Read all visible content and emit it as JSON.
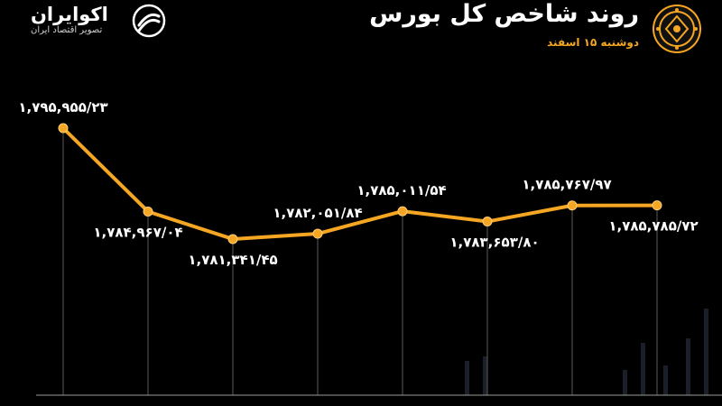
{
  "header": {
    "title": "روند شاخص کل بورس",
    "subtitle": "دوشنبه ۱۵ اسفند",
    "brand_name": "اکوایران",
    "brand_tagline": "تصویر اقتصاد ایران",
    "emblem_icon": "stock-exchange-emblem-icon",
    "brand_icon": "ecoiran-logo-icon"
  },
  "colors": {
    "background": "#000000",
    "line": "#f5a623",
    "marker": "#f5a623",
    "label": "#ffffff",
    "accent": "#f5a623",
    "grid": "#5a5a5a"
  },
  "chart_data": {
    "type": "line",
    "title": "روند شاخص کل بورس",
    "subtitle": "دوشنبه ۱۵ اسفند",
    "xlabel": "",
    "ylabel": "",
    "grid": "vertical",
    "values": [
      1795955.23,
      1784967.04,
      1781341.45,
      1782051.84,
      1785011.54,
      1783653.8,
      1785767.97,
      1785785.72
    ],
    "labels": [
      "۱,۷۹۵,۹۵۵/۲۳",
      "۱,۷۸۴,۹۶۷/۰۴",
      "۱,۷۸۱,۳۴۱/۴۵",
      "۱,۷۸۲,۰۵۱/۸۴",
      "۱,۷۸۵,۰۱۱/۵۴",
      "۱,۷۸۳,۶۵۳/۸۰",
      "۱,۷۸۵,۷۶۷/۹۷",
      "۱,۷۸۵,۷۸۵/۷۲"
    ],
    "label_position": [
      "above",
      "below",
      "below",
      "above",
      "above",
      "below",
      "above",
      "below"
    ]
  }
}
